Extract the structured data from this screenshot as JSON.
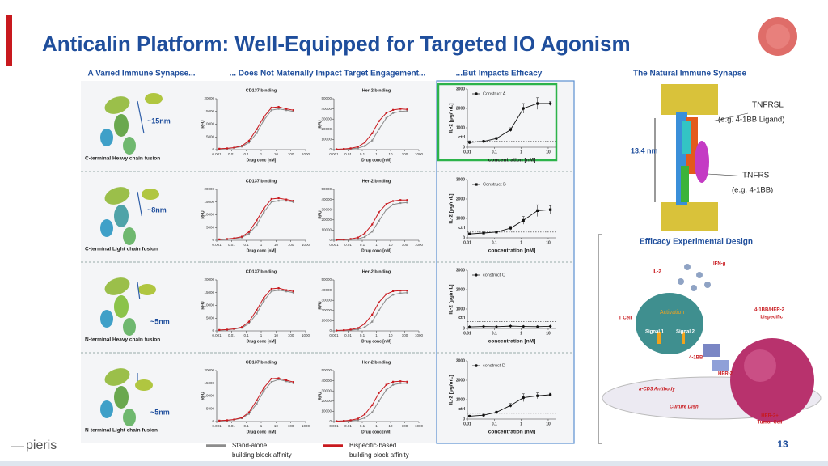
{
  "title": "Anticalin Platform: Well-Equipped for Targeted IO Agonism",
  "headers": [
    "A Varied Immune Synapse...",
    "... Does Not Materially Impact Target Engagement...",
    "...But Impacts Efficacy",
    "The Natural Immune Synapse"
  ],
  "axes": [
    {
      "title": "CD137 binding",
      "xlabel": "Drug conc [nM]",
      "ylabel": "RFU",
      "log_x": true,
      "xlim": [
        0.001,
        1000
      ],
      "xticks": [
        0.001,
        0.01,
        0.1,
        1,
        10,
        100,
        1000
      ],
      "ylim": [
        0,
        20000
      ],
      "yticks": [
        0,
        5000,
        10000,
        15000,
        20000
      ],
      "x": [
        0.0015,
        0.005,
        0.015,
        0.05,
        0.15,
        0.5,
        1.5,
        5,
        15,
        50,
        150
      ]
    },
    {
      "title": "Her-2 binding",
      "xlabel": "Drug conc [nM]",
      "ylabel": "RFU",
      "log_x": true,
      "xlim": [
        0.001,
        1000
      ],
      "xticks": [
        0.001,
        0.01,
        0.1,
        1,
        10,
        100,
        1000
      ],
      "ylim": [
        0,
        50000
      ],
      "yticks": [
        0,
        10000,
        20000,
        30000,
        40000,
        50000
      ],
      "x": [
        0.0015,
        0.005,
        0.015,
        0.05,
        0.15,
        0.5,
        1.5,
        5,
        15,
        50,
        150
      ]
    },
    {
      "xlabel": "concentration [nM]",
      "ylabel": "IL-2 [pg/mL]",
      "log_x": true,
      "xlim": [
        0.01,
        20
      ],
      "xticks": [
        0.01,
        0.1,
        1,
        10
      ],
      "ylim": [
        0,
        3000
      ],
      "yticks": [
        0,
        1000,
        2000,
        3000
      ],
      "x": [
        0.012,
        0.04,
        0.12,
        0.4,
        1.2,
        4,
        12
      ]
    }
  ],
  "rows": [
    {
      "label": "C-terminal Heavy chain fusion",
      "size": "~15nm",
      "charts": [
        {
          "type": "line",
          "series": [
            {
              "values": [
                300,
                450,
                700,
                1200,
                2800,
                6500,
                11500,
                15500,
                16000,
                15500,
                15000
              ]
            },
            {
              "values": [
                350,
                500,
                800,
                1500,
                3500,
                8000,
                12800,
                16500,
                16800,
                16000,
                15500
              ]
            }
          ]
        },
        {
          "type": "line",
          "series": [
            {
              "values": [
                300,
                500,
                800,
                1500,
                3500,
                9000,
                20000,
                31000,
                36000,
                37500,
                38000
              ]
            },
            {
              "values": [
                400,
                700,
                1300,
                2800,
                7000,
                16000,
                28000,
                36000,
                39000,
                40000,
                39500
              ]
            }
          ]
        },
        {
          "type": "errorline",
          "legend": "Construct A",
          "marker": "circle",
          "values": [
            250,
            300,
            450,
            900,
            2000,
            2250,
            2250
          ],
          "errors": [
            80,
            60,
            60,
            100,
            250,
            300,
            100
          ],
          "ctrl": {
            "label": "ctrl",
            "value": 300
          }
        }
      ]
    },
    {
      "label": "C-terminal Light chain fusion",
      "size": "~8nm",
      "charts": [
        {
          "type": "line",
          "series": [
            {
              "values": [
                300,
                400,
                650,
                1100,
                2600,
                6000,
                11000,
                15000,
                15500,
                15500,
                15000
              ]
            },
            {
              "values": [
                350,
                500,
                800,
                1400,
                3300,
                7800,
                12500,
                16200,
                16500,
                16000,
                15500
              ]
            }
          ]
        },
        {
          "type": "line",
          "series": [
            {
              "values": [
                300,
                500,
                800,
                1400,
                3200,
                8500,
                19000,
                30000,
                35000,
                36500,
                37000
              ]
            },
            {
              "values": [
                400,
                700,
                1300,
                2700,
                6800,
                15500,
                27500,
                35500,
                38500,
                39500,
                39500
              ]
            }
          ]
        },
        {
          "type": "errorline",
          "legend": "Construct B",
          "marker": "square",
          "values": [
            200,
            250,
            300,
            500,
            900,
            1400,
            1450
          ],
          "errors": [
            50,
            50,
            60,
            100,
            200,
            300,
            200
          ],
          "ctrl": {
            "label": "ctrl",
            "value": 300
          }
        }
      ]
    },
    {
      "label": "N-terminal Heavy chain fusion",
      "size": "~5nm",
      "charts": [
        {
          "type": "line",
          "series": [
            {
              "values": [
                300,
                450,
                700,
                1200,
                2900,
                6800,
                11800,
                15500,
                16000,
                15500,
                15000
              ]
            },
            {
              "values": [
                350,
                500,
                800,
                1500,
                3600,
                8200,
                13000,
                16500,
                16800,
                16000,
                15500
              ]
            }
          ]
        },
        {
          "type": "line",
          "series": [
            {
              "values": [
                300,
                500,
                800,
                1500,
                3500,
                9000,
                20000,
                31000,
                35500,
                37000,
                37500
              ]
            },
            {
              "values": [
                400,
                700,
                1300,
                2800,
                7000,
                16000,
                28000,
                36000,
                39000,
                39500,
                39500
              ]
            }
          ]
        },
        {
          "type": "errorline",
          "legend": "construct C",
          "marker": "diamond",
          "values": [
            80,
            100,
            90,
            120,
            100,
            90,
            110
          ],
          "errors": [
            30,
            30,
            30,
            30,
            30,
            30,
            30
          ],
          "ctrl": {
            "label": "ctrl",
            "value": 350
          }
        }
      ]
    },
    {
      "label": "N-terminal Light chain fusion",
      "size": "~5nm",
      "charts": [
        {
          "type": "line",
          "series": [
            {
              "values": [
                300,
                450,
                700,
                1300,
                3000,
                7000,
                12000,
                15500,
                16500,
                15800,
                15000
              ]
            },
            {
              "values": [
                350,
                500,
                800,
                1500,
                3600,
                8300,
                13200,
                16800,
                17000,
                16200,
                15500
              ]
            }
          ]
        },
        {
          "type": "line",
          "series": [
            {
              "values": [
                300,
                500,
                800,
                1500,
                3500,
                9000,
                20000,
                31000,
                36000,
                37500,
                37500
              ]
            },
            {
              "values": [
                400,
                700,
                1300,
                2800,
                7000,
                16000,
                28000,
                36000,
                39000,
                39500,
                39000
              ]
            }
          ]
        },
        {
          "type": "errorline",
          "legend": "construct D",
          "marker": "circle",
          "values": [
            150,
            200,
            350,
            700,
            1100,
            1200,
            1250
          ],
          "errors": [
            40,
            40,
            60,
            100,
            200,
            150,
            80
          ],
          "ctrl": {
            "label": "ctrl",
            "value": 300
          }
        }
      ]
    }
  ],
  "legend": [
    {
      "lines": [
        "Stand-alone",
        "building block affinity"
      ],
      "color": "#8c8c8c"
    },
    {
      "lines": [
        "Bispecific-based",
        "building block affinity"
      ],
      "color": "#c8191e"
    }
  ],
  "synapse": {
    "ligand": "TNFRSL",
    "ligand_example": "(e.g. 4-1BB Ligand)",
    "distance": "13.4 nm",
    "receptor": "TNFRS",
    "receptor_example": "(e.g. 4-1BB)"
  },
  "design": {
    "title": "Efficacy Experimental Design",
    "il2": "IL-2",
    "ifng": "IFN-g",
    "activation": "Activation",
    "tcell": "T Cell",
    "signal1": "Signal 1",
    "signal2": "Signal 2",
    "bispecific": [
      "4-1BB/HER-2",
      "bispecific"
    ],
    "bb": "4-1BB",
    "her2": "HER-2",
    "cd3": "a-CD3 Antibody",
    "dish": "Culture Dish",
    "tumor": [
      "HER-2+",
      "Tumor Cell"
    ]
  },
  "page_number": "13",
  "logo": "pieris"
}
